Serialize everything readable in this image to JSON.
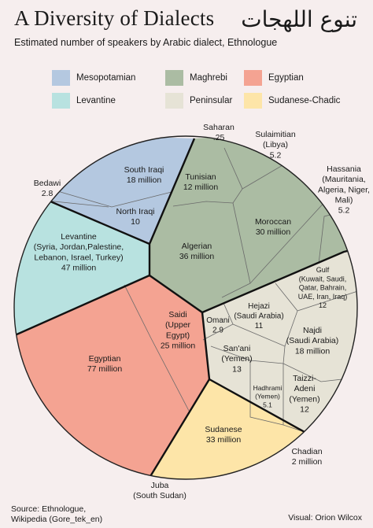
{
  "header": {
    "title": "A Diversity of Dialects",
    "title_arabic": "تنوع اللهجات",
    "subtitle": "Estimated number of speakers by Arabic dialect, Ethnologue"
  },
  "legend": [
    {
      "name": "Mesopotamian",
      "color": "#b4c8e0"
    },
    {
      "name": "Maghrebi",
      "color": "#abbca3"
    },
    {
      "name": "Egyptian",
      "color": "#f4a392"
    },
    {
      "name": "Levantine",
      "color": "#b8e2e0"
    },
    {
      "name": "Peninsular",
      "color": "#e6e3d6"
    },
    {
      "name": "Sudanese-Chadic",
      "color": "#fde5a8"
    }
  ],
  "footer": {
    "source_line1": "Source: Ethnologue,",
    "source_line2": "Wikipedia (Gore_tek_en)",
    "credit": "Visual: Orion Wilcox"
  },
  "chart_data": {
    "type": "voronoi-treemap",
    "title": "A Diversity of Dialects",
    "subtitle": "Estimated number of speakers by Arabic dialect, Ethnologue",
    "unit": "million speakers",
    "groups": [
      {
        "name": "Mesopotamian",
        "color": "#b4c8e0",
        "dialects": [
          {
            "name": "South Iraqi",
            "value": 18
          },
          {
            "name": "North Iraqi",
            "value": 10
          },
          {
            "name": "Bedawi",
            "value": 2.8
          }
        ]
      },
      {
        "name": "Maghrebi",
        "color": "#abbca3",
        "dialects": [
          {
            "name": "Algerian",
            "value": 36
          },
          {
            "name": "Moroccan",
            "value": 30
          },
          {
            "name": "Tunisian",
            "value": 12
          },
          {
            "name": "Hassania",
            "detail": "(Mauritania, Algeria, Niger, Mali)",
            "value": 5.2
          },
          {
            "name": "Sulaimitian",
            "detail": "(Libya)",
            "value": 5.2
          },
          {
            "name": "Saharan",
            "value": 0.25
          }
        ]
      },
      {
        "name": "Egyptian",
        "color": "#f4a392",
        "dialects": [
          {
            "name": "Egyptian",
            "value": 77
          },
          {
            "name": "Saidi",
            "detail": "(Upper Egypt)",
            "value": 25
          }
        ]
      },
      {
        "name": "Levantine",
        "color": "#b8e2e0",
        "dialects": [
          {
            "name": "Levantine",
            "detail": "(Syria, Jordan, Palestine, Lebanon, Israel, Turkey)",
            "value": 47
          }
        ]
      },
      {
        "name": "Peninsular",
        "color": "#e6e3d6",
        "dialects": [
          {
            "name": "Najdi",
            "detail": "(Saudi Arabia)",
            "value": 18
          },
          {
            "name": "San'ani",
            "detail": "(Yemen)",
            "value": 13
          },
          {
            "name": "Taizzi-Adeni",
            "detail": "(Yemen)",
            "value": 12
          },
          {
            "name": "Gulf",
            "detail": "(Kuwait, Saudi, Qatar, Bahrain, UAE, Iran, Iraq)",
            "value": 12
          },
          {
            "name": "Hejazi",
            "detail": "(Saudi Arabia)",
            "value": 11
          },
          {
            "name": "Hadhrami",
            "detail": "(Yemen)",
            "value": 5.1
          },
          {
            "name": "Omani",
            "value": 2.9
          }
        ]
      },
      {
        "name": "Sudanese-Chadic",
        "color": "#fde5a8",
        "dialects": [
          {
            "name": "Sudanese",
            "value": 33
          },
          {
            "name": "Chadian",
            "value": 2
          },
          {
            "name": "Juba",
            "detail": "(South Sudan)",
            "value": null
          }
        ]
      }
    ],
    "labels": {
      "south_iraqi": [
        "South Iraqi",
        "18 million"
      ],
      "north_iraqi": [
        "North Iraqi",
        "10"
      ],
      "bedawi": [
        "Bedawi",
        "2.8"
      ],
      "tunisian": [
        "Tunisian",
        "12 million"
      ],
      "saharan": [
        "Saharan",
        ".25"
      ],
      "sulaimitian": [
        "Sulaimitian",
        "(Libya)",
        "5.2"
      ],
      "hassania": [
        "Hassania",
        "(Mauritania,",
        "Algeria, Niger,",
        "Mali)",
        "5.2"
      ],
      "moroccan": [
        "Moroccan",
        "30 million"
      ],
      "algerian": [
        "Algerian",
        "36 million"
      ],
      "levantine": [
        "Levantine",
        "(Syria, Jordan,Palestine,",
        "Lebanon, Israel, Turkey)",
        "47 million"
      ],
      "gulf": [
        "Gulf",
        "(Kuwait, Saudi,",
        "Qatar, Bahrain,",
        "UAE, Iran, Iraq)",
        "12"
      ],
      "hejazi": [
        "Hejazi",
        "(Saudi Arabia)",
        "11"
      ],
      "omani": [
        "Omani",
        "2.9"
      ],
      "najdi": [
        "Najdi",
        "(Saudi Arabia)",
        "18 million"
      ],
      "sanani": [
        "San'ani",
        "(Yemen)",
        "13"
      ],
      "saidi": [
        "Saidi",
        "(Upper",
        "Egypt)",
        "25 million"
      ],
      "egyptian": [
        "Egyptian",
        "77 million"
      ],
      "taizzi": [
        "Taizzi-",
        "Adeni",
        "(Yemen)",
        "12"
      ],
      "hadhrami": [
        "Hadhrami",
        "(Yemen)",
        "5.1"
      ],
      "sudanese": [
        "Sudanese",
        "33 million"
      ],
      "chadian": [
        "Chadian",
        "2 million"
      ],
      "juba": [
        "Juba",
        "(South Sudan)"
      ]
    }
  }
}
